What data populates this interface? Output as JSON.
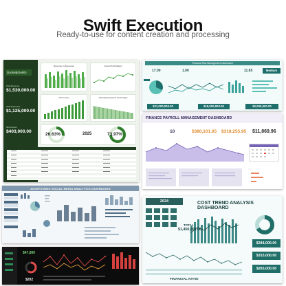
{
  "header": {
    "title": "Swift Execution",
    "subtitle": "Ready-to-use for content creation and processing"
  },
  "panel_green": {
    "sidebar_tag": "DASHBOARD",
    "kpis": [
      "$1,530,000.00",
      "$1,125,000.00",
      "$403,000.00"
    ],
    "donut_left_pct": "26.63%",
    "year": "2025",
    "donut_right_pct": "73.97%",
    "chart_titles": [
      "Revenue vs Expenses",
      "Gross Profit Margin",
      "Net Income",
      "Operating Expense Percentage"
    ]
  },
  "panel_teal": {
    "header": "Financial Risk Management Dashboard",
    "stats": [
      "17.00",
      "1.00",
      "11.65"
    ],
    "risk_level": "Medium",
    "totals": [
      "$21,000,000.00",
      "$19,000,000.00",
      "$2,000,000.00"
    ]
  },
  "panel_payroll": {
    "title": "FINANCE PAYROLL MANAGEMENT DASHBOARD",
    "kpis": [
      "10",
      "$380,101.05",
      "$318,255.95",
      "$11,869.96"
    ]
  },
  "panel_social": {
    "title": "ADVERTISING SOCIAL MEDIA ANALYTICS DASHBOARD"
  },
  "panel_cost": {
    "year": "2024",
    "title": "COST TREND ANALYSIS DASHBOARD",
    "total_label": "TOTAL",
    "total_value": "$1,450,000.00",
    "side_values": [
      "$344,000.00",
      "$315,000.00",
      "$265,000.00"
    ],
    "footer": "FINANCIAL RATIO"
  },
  "panel_dark": {
    "kpis": [
      "$47,800",
      "$202"
    ]
  },
  "colors": {
    "green_dark": "#1f3d1e",
    "green_bar": "#4fae4a",
    "teal": "#1e6e6b",
    "purple": "#8b76c7",
    "slate": "#7e97ad",
    "dark": "#0c0c0c"
  }
}
